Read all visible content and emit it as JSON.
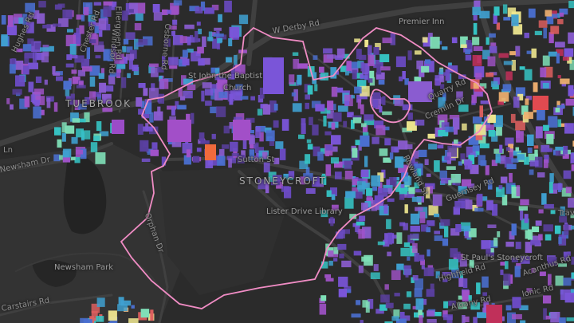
{
  "map": {
    "background": "#2b2b2b",
    "road_color": "#404040",
    "park_color": "#343434",
    "water_color": "#242424",
    "boundary_color": "#f08cc4",
    "building_palette": [
      "#5a3fa0",
      "#6b4bc4",
      "#7a55d8",
      "#8a5cd0",
      "#a052c8",
      "#4a6fd0",
      "#3fa0d0",
      "#36c4c4",
      "#7fe0b8",
      "#f0e890",
      "#f0b070",
      "#e06060",
      "#c0305a"
    ]
  },
  "labels": {
    "tuebrook": "TUEBROOK",
    "stoneycroft": "STONEYCROFT",
    "w_derby_rd": "W Derby Rd",
    "premier_inn": "Premier Inn",
    "st_john_church_1": "St John the Baptist",
    "st_john_church_2": "Church",
    "sutton_st": "Sutton St",
    "lister_drive_library": "Lister Drive Library",
    "quarry_rd": "Quarry Rd",
    "cremlin_dr": "Cremlin Dr",
    "rowland_st": "Rowland St",
    "guernsey_rd": "Guernsey Rd",
    "st_pauls": "St Paul's Stoneycroft",
    "acanthus_rd": "Acanthus Rd",
    "highfield_rd": "Highfield Rd",
    "ionic_rd": "Ionic Rd",
    "albany_rd": "Albany Rd",
    "orphan_dr": "Orphan Dr",
    "newsham_park": "Newsham Park",
    "newsham_dr": "Newsham Dr",
    "carstairs_rd": "Carstairs Rd",
    "ellergreen_rd": "Ellergreen Rd",
    "windsor_rd": "Windsor Rd",
    "osborne_rd": "Osborne Rd",
    "hughes_rd": "Hughes Rd",
    "chester_rd": "Chester Rd",
    "ln": "Ln",
    "trav": "Trav"
  }
}
